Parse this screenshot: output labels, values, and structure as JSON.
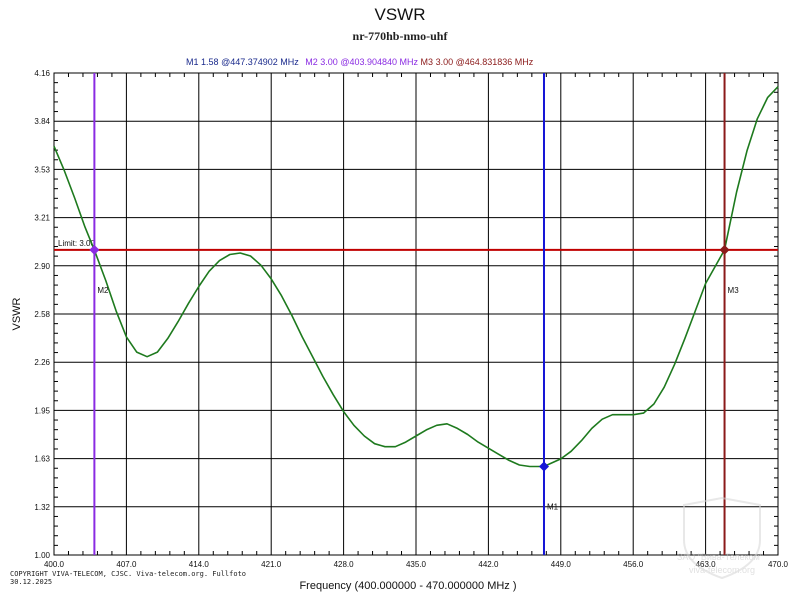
{
  "chart_data": {
    "type": "line",
    "title": "VSWR",
    "subtitle": "nr-770hb-nmo-uhf",
    "xlabel": "Frequency (400.000000 - 470.000000 MHz )",
    "ylabel": "VSWR",
    "xlim": [
      400,
      470
    ],
    "ylim": [
      1.0,
      4.16
    ],
    "x_ticks": [
      "400.0",
      "407.0",
      "414.0",
      "421.0",
      "428.0",
      "435.0",
      "442.0",
      "449.0",
      "456.0",
      "463.0",
      "470.0"
    ],
    "y_ticks": [
      "1.00",
      "1.32",
      "1.63",
      "1.95",
      "2.26",
      "2.58",
      "2.90",
      "3.21",
      "3.53",
      "3.84",
      "4.16"
    ],
    "grid": true,
    "limit": {
      "label": "Limit: 3.00",
      "value": 3.0,
      "color": "#c00000"
    },
    "series": [
      {
        "color": "#1e7a1e",
        "x": [
          400.0,
          401.0,
          402.0,
          403.0,
          403.9,
          405.0,
          406.0,
          407.0,
          408.0,
          409.0,
          410.0,
          411.0,
          412.0,
          413.0,
          414.0,
          415.0,
          416.0,
          417.0,
          418.0,
          419.0,
          420.0,
          421.0,
          422.0,
          423.0,
          424.0,
          425.0,
          426.0,
          427.0,
          428.0,
          429.0,
          430.0,
          431.0,
          432.0,
          433.0,
          434.0,
          435.0,
          436.0,
          437.0,
          438.0,
          439.0,
          440.0,
          441.0,
          442.0,
          443.0,
          444.0,
          445.0,
          446.0,
          447.37,
          448.0,
          449.0,
          450.0,
          451.0,
          452.0,
          453.0,
          454.0,
          455.0,
          456.0,
          457.0,
          458.0,
          459.0,
          460.0,
          461.0,
          462.0,
          463.0,
          464.83,
          466.0,
          467.0,
          468.0,
          469.0,
          470.0
        ],
        "y": [
          3.68,
          3.52,
          3.34,
          3.15,
          3.0,
          2.8,
          2.6,
          2.43,
          2.33,
          2.3,
          2.33,
          2.42,
          2.53,
          2.65,
          2.76,
          2.86,
          2.93,
          2.97,
          2.98,
          2.96,
          2.9,
          2.81,
          2.7,
          2.57,
          2.43,
          2.3,
          2.17,
          2.05,
          1.94,
          1.85,
          1.78,
          1.73,
          1.71,
          1.71,
          1.74,
          1.78,
          1.82,
          1.85,
          1.86,
          1.83,
          1.79,
          1.74,
          1.7,
          1.66,
          1.62,
          1.59,
          1.58,
          1.58,
          1.6,
          1.63,
          1.68,
          1.75,
          1.83,
          1.89,
          1.92,
          1.92,
          1.92,
          1.93,
          1.99,
          2.1,
          2.25,
          2.42,
          2.6,
          2.78,
          3.0,
          3.38,
          3.65,
          3.86,
          4.0,
          4.07
        ]
      }
    ],
    "markers": [
      {
        "name": "M1",
        "value": "1.58",
        "freq": "447.374902 MHz",
        "x": 447.374902,
        "y": 1.58,
        "color": "#1515d6",
        "label_side": "below"
      },
      {
        "name": "M2",
        "value": "3.00",
        "freq": "403.904840 MHz",
        "x": 403.90484,
        "y": 3.0,
        "color": "#8a2be2",
        "label_side": "below"
      },
      {
        "name": "M3",
        "value": "3.00",
        "freq": "464.831836 MHz",
        "x": 464.831836,
        "y": 3.0,
        "color": "#8b1a1a",
        "label_side": "below"
      }
    ],
    "readout_colors": [
      "#1a2a8c",
      "#8a2be2",
      "#8b1a1a"
    ]
  },
  "footer": {
    "copyright_line1": "COPYRIGHT VIVA-TELECOM, CJSC. Viva-telecom.org. Fullfoto",
    "copyright_line2": "30.12.2025",
    "watermark_line1": "ЗАО \"Вива-Телеком\"",
    "watermark_line2": "viva-telecom.org"
  }
}
